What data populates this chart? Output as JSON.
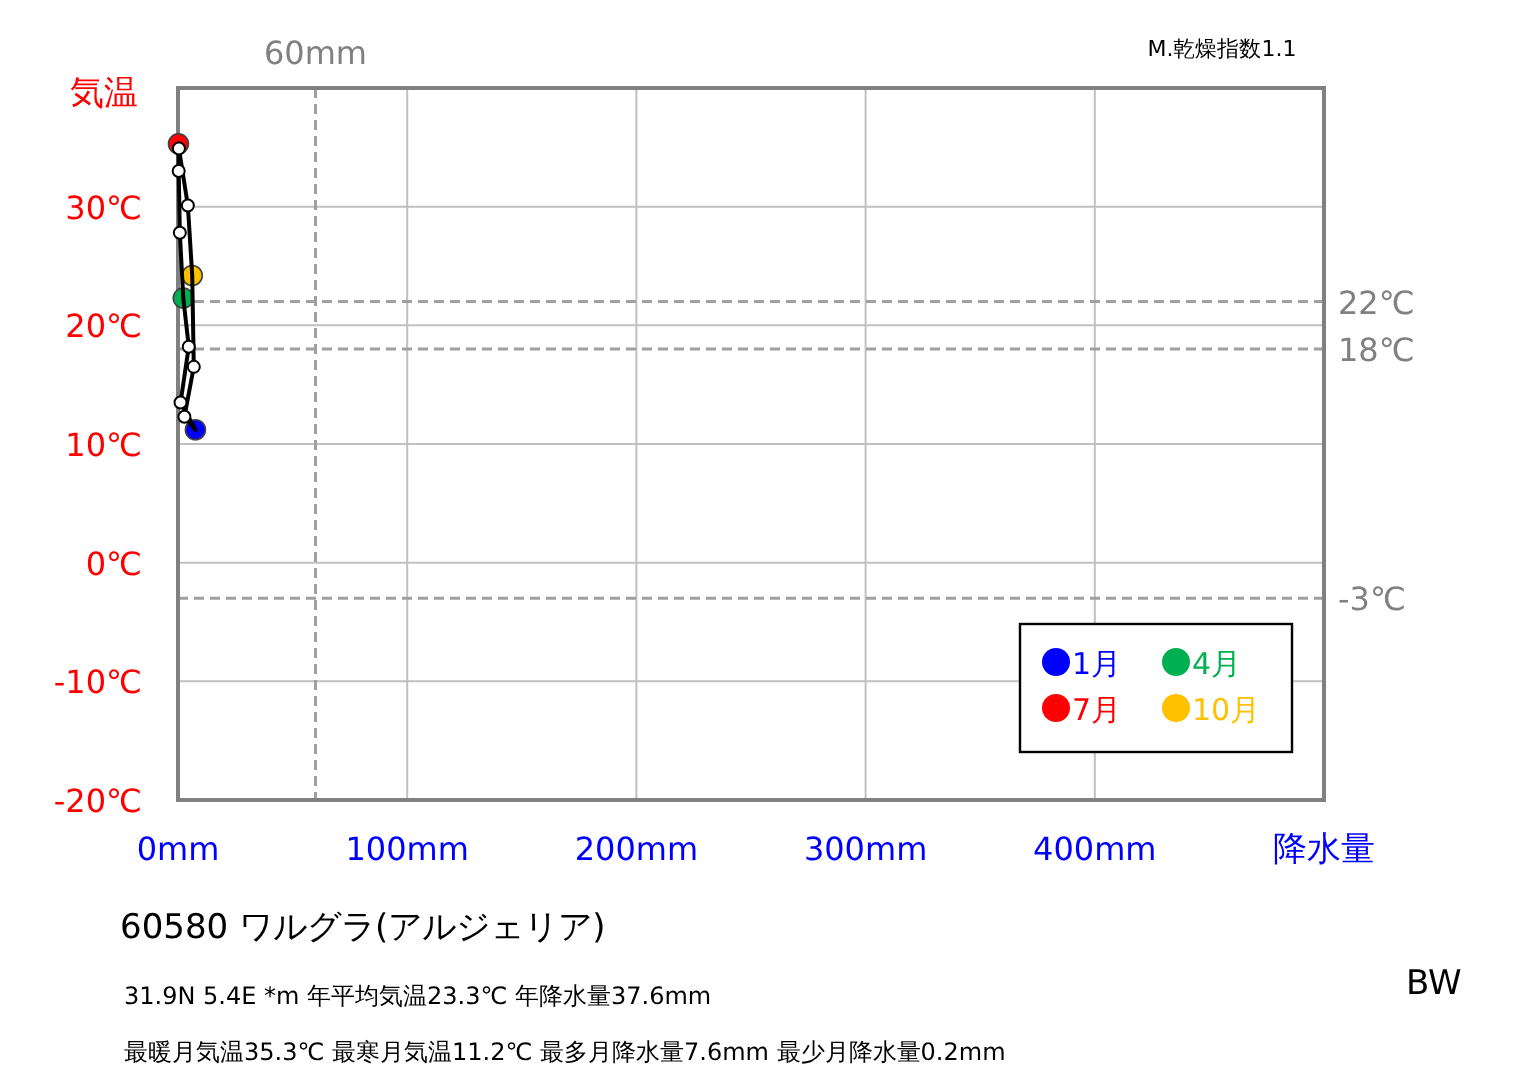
{
  "chart_data": {
    "type": "line",
    "title": "60580  ワルグラ(アルジェリア)",
    "xlabel": "降水量",
    "ylabel": "気温",
    "xlim": [
      0,
      500
    ],
    "xticks": [
      {
        "value": 0,
        "label": "0mm"
      },
      {
        "value": 100,
        "label": "100mm"
      },
      {
        "value": 200,
        "label": "200mm"
      },
      {
        "value": 300,
        "label": "300mm"
      },
      {
        "value": 400,
        "label": "400mm"
      }
    ],
    "ylim": [
      -20,
      40
    ],
    "yticks": [
      {
        "value": -20,
        "label": "-20℃"
      },
      {
        "value": -10,
        "label": "-10℃"
      },
      {
        "value": 0,
        "label": "0℃"
      },
      {
        "value": 10,
        "label": "10℃"
      },
      {
        "value": 20,
        "label": "20℃"
      },
      {
        "value": 30,
        "label": "30℃"
      }
    ],
    "grid": true,
    "legend": "bottom right",
    "marker": "circle",
    "series": [
      {
        "type": "scatter",
        "name": "1月",
        "color": "#0000ff",
        "x": [
          7.6
        ],
        "values": [
          11.2
        ]
      },
      {
        "type": "scatter",
        "name": "4月",
        "color": "#00b050",
        "x": [
          2.3
        ],
        "values": [
          22.3
        ]
      },
      {
        "type": "scatter",
        "name": "7月",
        "color": "#ff0000",
        "x": [
          0.2
        ],
        "values": [
          35.3
        ]
      },
      {
        "type": "scatter",
        "name": "10月",
        "color": "#ffc000",
        "x": [
          6.2
        ],
        "values": [
          24.2
        ]
      },
      {
        "color": "#000000",
        "marker": "none",
        "x": [
          7.6,
          1.1
        ],
        "values": [
          11.2,
          13.5
        ]
      },
      {
        "color": "#000000",
        "marker": "none",
        "x": [
          1.1,
          4.7
        ],
        "values": [
          13.5,
          18.2
        ]
      },
      {
        "color": "#000000",
        "marker": "none",
        "x": [
          4.7,
          2.3,
          0.8,
          0.3,
          0.2
        ],
        "values": [
          18.2,
          22.3,
          27.8,
          33.0,
          35.3
        ]
      },
      {
        "color": "#000000",
        "marker": "none",
        "x": [
          0.2,
          0.4,
          4.3,
          6.2,
          6.9
        ],
        "values": [
          35.3,
          34.9,
          30.1,
          24.2,
          16.5
        ]
      },
      {
        "color": "#000000",
        "marker": "none",
        "x": [
          6.9,
          2.8
        ],
        "values": [
          16.5,
          12.3
        ]
      },
      {
        "color": "#000000",
        "marker": "none",
        "x": [
          2.8,
          7.6
        ],
        "values": [
          12.3,
          11.2
        ]
      },
      {
        "type": "scatter",
        "color": "#ffffff",
        "x": [
          1.1,
          4.7,
          0.8,
          0.3,
          0.4,
          4.3,
          6.9,
          2.8
        ],
        "values": [
          13.5,
          18.2,
          27.8,
          33.0,
          34.9,
          30.1,
          16.5,
          12.3
        ]
      }
    ],
    "ref_lines": [
      {
        "axis": "x",
        "value": 60,
        "label": "60mm",
        "color": "#a0a0a0",
        "line_style": "dashed"
      },
      {
        "axis": "y",
        "value": 22,
        "label": "22℃",
        "color": "#a0a0a0",
        "line_style": "dashed"
      },
      {
        "axis": "y",
        "value": 18,
        "label": "18℃",
        "color": "#a0a0a0",
        "line_style": "dashed"
      },
      {
        "axis": "y",
        "value": -3,
        "label": "-3℃",
        "color": "#a0a0a0",
        "line_style": "dashed"
      }
    ],
    "annotations": [
      "M.乾燥指数1.1",
      "31.9N  5.4E *m  年平均気温23.3℃ 年降水量37.6mm",
      "最暖月気温35.3℃ 最寒月気温11.2℃ 最多月降水量7.6mm 最少月降水量0.2mm",
      "BW"
    ]
  }
}
